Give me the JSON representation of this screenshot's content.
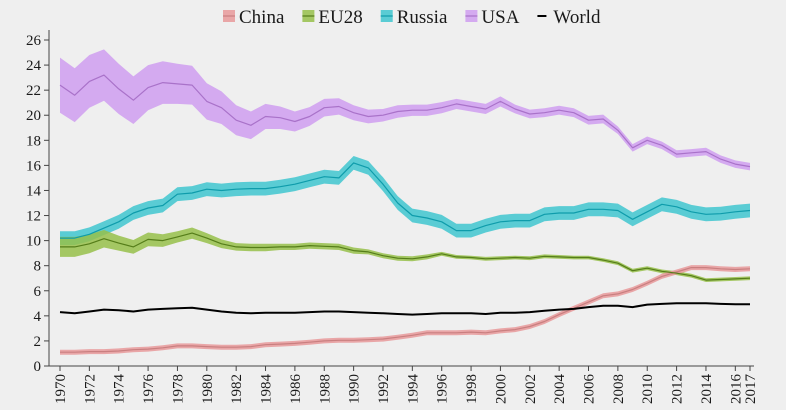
{
  "chart_data": {
    "type": "line",
    "title": "",
    "xlabel": "",
    "ylabel": "",
    "xlim": [
      1970,
      2017
    ],
    "ylim": [
      0,
      26
    ],
    "y_ticks": [
      0,
      2,
      4,
      6,
      8,
      10,
      12,
      14,
      16,
      18,
      20,
      22,
      24,
      26
    ],
    "x_tick_labels": [
      "1970",
      "1972",
      "1974",
      "1976",
      "1978",
      "1980",
      "1982",
      "1984",
      "1986",
      "1988",
      "1990",
      "1992",
      "1994",
      "1996",
      "1998",
      "2000",
      "2002",
      "2004",
      "2006",
      "2008",
      "2010",
      "2012",
      "2014",
      "2016",
      "2017"
    ],
    "grid": false,
    "legend_position": "top",
    "years": [
      1970,
      1971,
      1972,
      1973,
      1974,
      1975,
      1976,
      1977,
      1978,
      1979,
      1980,
      1981,
      1982,
      1983,
      1984,
      1985,
      1986,
      1987,
      1988,
      1989,
      1990,
      1991,
      1992,
      1993,
      1994,
      1995,
      1996,
      1997,
      1998,
      1999,
      2000,
      2001,
      2002,
      2003,
      2004,
      2005,
      2006,
      2007,
      2008,
      2009,
      2010,
      2011,
      2012,
      2013,
      2014,
      2015,
      2016,
      2017
    ],
    "series": [
      {
        "name": "China",
        "color": "#e8999a",
        "line_color": "#c97f80",
        "legend_icon": "band",
        "band_halfwidth": 0.2,
        "values": [
          1.1,
          1.1,
          1.15,
          1.15,
          1.2,
          1.3,
          1.35,
          1.45,
          1.6,
          1.6,
          1.55,
          1.5,
          1.5,
          1.55,
          1.7,
          1.75,
          1.8,
          1.9,
          2.0,
          2.05,
          2.05,
          2.1,
          2.15,
          2.3,
          2.45,
          2.65,
          2.65,
          2.65,
          2.7,
          2.65,
          2.8,
          2.9,
          3.15,
          3.55,
          4.1,
          4.6,
          5.1,
          5.6,
          5.75,
          6.1,
          6.6,
          7.15,
          7.5,
          7.85,
          7.85,
          7.75,
          7.7,
          7.75
        ]
      },
      {
        "name": "EU28",
        "color": "#96c04a",
        "line_color": "#557d19",
        "legend_icon": "band",
        "band_halfwidth_by_year": [
          0.8,
          0.8,
          0.75,
          0.7,
          0.6,
          0.55,
          0.55,
          0.5,
          0.45,
          0.45,
          0.4,
          0.35,
          0.3,
          0.3,
          0.3,
          0.25,
          0.25,
          0.25,
          0.25,
          0.25,
          0.25,
          0.2,
          0.2,
          0.2,
          0.2,
          0.2,
          0.15,
          0.15,
          0.15,
          0.15,
          0.15,
          0.15,
          0.15,
          0.15,
          0.15,
          0.15,
          0.15,
          0.15,
          0.15,
          0.15,
          0.15,
          0.15,
          0.15,
          0.15,
          0.15,
          0.15,
          0.15,
          0.15
        ],
        "values": [
          9.5,
          9.5,
          9.75,
          10.15,
          9.8,
          9.5,
          10.1,
          10.0,
          10.3,
          10.6,
          10.2,
          9.75,
          9.5,
          9.45,
          9.45,
          9.5,
          9.5,
          9.6,
          9.55,
          9.5,
          9.2,
          9.1,
          8.8,
          8.6,
          8.55,
          8.7,
          8.95,
          8.7,
          8.65,
          8.55,
          8.6,
          8.65,
          8.6,
          8.75,
          8.7,
          8.65,
          8.65,
          8.45,
          8.2,
          7.6,
          7.8,
          7.55,
          7.4,
          7.2,
          6.85,
          6.9,
          6.95,
          7.0
        ]
      },
      {
        "name": "Russia",
        "color": "#3fc5cf",
        "line_color": "#0e9cab",
        "legend_icon": "band",
        "band_halfwidth": 0.55,
        "values": [
          10.2,
          10.2,
          10.5,
          11.0,
          11.5,
          12.2,
          12.6,
          12.8,
          13.7,
          13.8,
          14.1,
          14.0,
          14.1,
          14.15,
          14.15,
          14.3,
          14.5,
          14.8,
          15.1,
          15.0,
          16.2,
          15.8,
          14.5,
          13.0,
          12.0,
          11.8,
          11.5,
          10.8,
          10.8,
          11.2,
          11.5,
          11.6,
          11.6,
          12.1,
          12.2,
          12.2,
          12.5,
          12.5,
          12.4,
          11.7,
          12.3,
          12.9,
          12.7,
          12.3,
          12.1,
          12.15,
          12.3,
          12.4
        ]
      },
      {
        "name": "USA",
        "color": "#cf9ef0",
        "line_color": "#a972c9",
        "legend_icon": "band",
        "band_halfwidth_by_year": [
          2.2,
          2.15,
          2.1,
          2.05,
          2.0,
          1.9,
          1.8,
          1.7,
          1.6,
          1.55,
          1.45,
          1.3,
          1.2,
          1.1,
          1.0,
          0.9,
          0.8,
          0.75,
          0.7,
          0.65,
          0.6,
          0.55,
          0.5,
          0.5,
          0.45,
          0.45,
          0.45,
          0.4,
          0.4,
          0.4,
          0.4,
          0.35,
          0.35,
          0.35,
          0.35,
          0.35,
          0.35,
          0.35,
          0.3,
          0.3,
          0.3,
          0.3,
          0.3,
          0.3,
          0.3,
          0.3,
          0.3,
          0.3
        ],
        "values": [
          22.4,
          21.6,
          22.7,
          23.2,
          22.1,
          21.2,
          22.2,
          22.6,
          22.5,
          22.4,
          21.1,
          20.6,
          19.6,
          19.2,
          19.9,
          19.8,
          19.5,
          19.9,
          20.6,
          20.7,
          20.2,
          19.9,
          20.0,
          20.3,
          20.4,
          20.4,
          20.6,
          20.9,
          20.7,
          20.5,
          21.1,
          20.5,
          20.1,
          20.2,
          20.4,
          20.2,
          19.6,
          19.7,
          18.8,
          17.4,
          18.0,
          17.6,
          16.9,
          17.0,
          17.1,
          16.5,
          16.1,
          15.9
        ]
      },
      {
        "name": "World",
        "color": "#000000",
        "line_color": "#000000",
        "legend_icon": "line",
        "values": [
          4.3,
          4.2,
          4.35,
          4.5,
          4.45,
          4.35,
          4.5,
          4.55,
          4.6,
          4.65,
          4.5,
          4.35,
          4.25,
          4.2,
          4.25,
          4.25,
          4.25,
          4.3,
          4.35,
          4.35,
          4.3,
          4.25,
          4.2,
          4.15,
          4.1,
          4.15,
          4.2,
          4.2,
          4.2,
          4.15,
          4.25,
          4.25,
          4.3,
          4.4,
          4.5,
          4.55,
          4.7,
          4.8,
          4.8,
          4.7,
          4.9,
          4.95,
          5.0,
          5.0,
          5.0,
          4.95,
          4.92,
          4.92
        ]
      }
    ]
  }
}
